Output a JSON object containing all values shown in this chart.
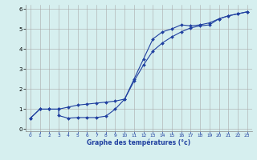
{
  "xlabel": "Graphe des températures (°c)",
  "xlim": [
    -0.5,
    23.5
  ],
  "ylim": [
    -0.1,
    6.2
  ],
  "xticks": [
    0,
    1,
    2,
    3,
    4,
    5,
    6,
    7,
    8,
    9,
    10,
    11,
    12,
    13,
    14,
    15,
    16,
    17,
    18,
    19,
    20,
    21,
    22,
    23
  ],
  "yticks": [
    0,
    1,
    2,
    3,
    4,
    5,
    6
  ],
  "line_color": "#2040a0",
  "bg_color": "#d6efef",
  "series1_x": [
    0,
    1,
    2,
    3,
    4,
    5,
    6,
    7,
    8,
    9,
    10,
    11,
    12,
    13,
    14,
    15,
    16,
    17,
    18,
    19,
    20,
    21,
    22,
    23
  ],
  "series1_y": [
    0.55,
    1.0,
    1.0,
    1.0,
    1.1,
    1.2,
    1.25,
    1.3,
    1.35,
    1.4,
    1.5,
    2.4,
    3.2,
    3.9,
    4.3,
    4.6,
    4.85,
    5.05,
    5.15,
    5.2,
    5.5,
    5.65,
    5.75,
    5.85
  ],
  "series2_x": [
    0,
    1,
    2,
    3,
    3,
    4,
    5,
    6,
    7,
    8,
    9,
    10,
    11,
    12,
    13,
    14,
    15,
    16,
    17,
    18,
    19,
    20,
    21,
    22,
    23
  ],
  "series2_y": [
    0.55,
    1.0,
    1.0,
    1.0,
    0.68,
    0.55,
    0.58,
    0.58,
    0.58,
    0.65,
    1.0,
    1.5,
    2.5,
    3.5,
    4.5,
    4.85,
    5.0,
    5.2,
    5.15,
    5.2,
    5.3,
    5.5,
    5.65,
    5.75,
    5.85
  ]
}
